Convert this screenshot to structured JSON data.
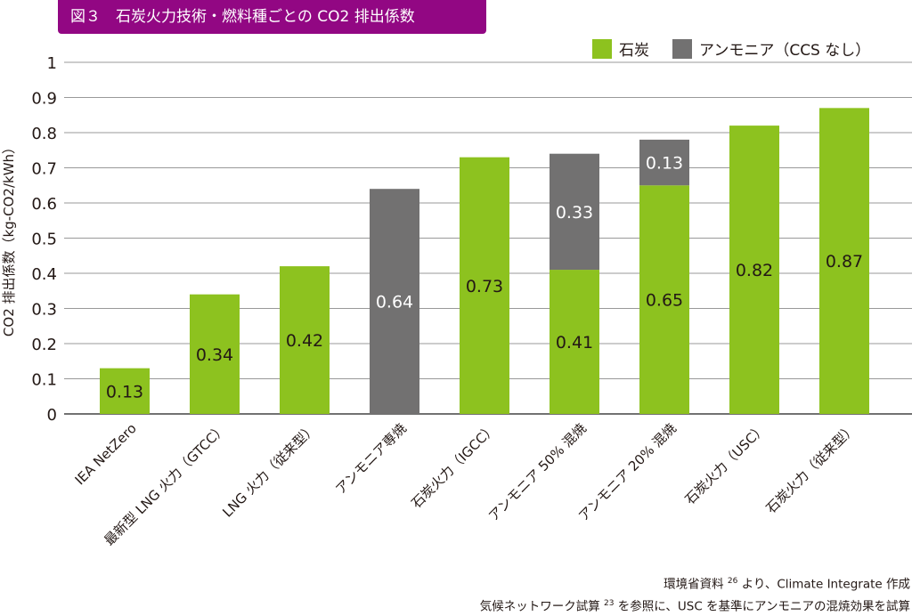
{
  "chart_data": {
    "type": "bar",
    "stacked": true,
    "title": "図３　石炭火力技術・燃料種ごとの CO2 排出係数",
    "ylabel": "CO2 排出係数（kg-CO2/kWh）",
    "xlabel": "",
    "ylim": [
      0,
      1
    ],
    "yticks": [
      "0",
      "0.1",
      "0.2",
      "0.3",
      "0.4",
      "0.5",
      "0.6",
      "0.7",
      "0.8",
      "0.9",
      "1"
    ],
    "grid": true,
    "legend_position": "top-right",
    "categories": [
      "IEA NetZero",
      "最新型 LNG 火力（GTCC）",
      "LNG 火力（従来型）",
      "アンモニア専焼",
      "石炭火力（IGCC）",
      "アンモニア 50% 混焼",
      "アンモニア 20% 混焼",
      "石炭火力（USC）",
      "石炭火力（従来型）"
    ],
    "series": [
      {
        "name": "石炭",
        "color": "#8dc21f",
        "values": [
          0.13,
          0.34,
          0.42,
          0,
          0.73,
          0.41,
          0.65,
          0.82,
          0.87
        ]
      },
      {
        "name": "アンモニア（CCS なし）",
        "color": "#727171",
        "values": [
          0,
          0,
          0,
          0.64,
          0,
          0.33,
          0.13,
          0,
          0
        ]
      }
    ]
  },
  "footer": {
    "line1_pre": "環境省資料 ",
    "line1_sup": "26",
    "line1_post": " より、Climate Integrate 作成",
    "line2_pre": "気候ネットワーク試算 ",
    "line2_sup": "23",
    "line2_post": " を参照に、USC を基準にアンモニアの混焼効果を試算"
  }
}
